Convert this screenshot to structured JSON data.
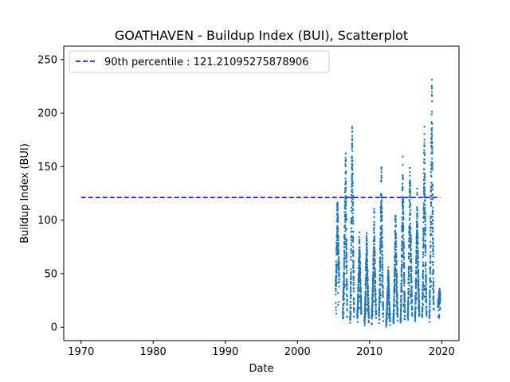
{
  "chart_data": {
    "type": "scatter",
    "title": "GOATHAVEN - Buildup Index (BUI), Scatterplot",
    "xlabel": "Date",
    "ylabel": "Buildup Index (BUI)",
    "xlim": [
      1967.6,
      2022.4
    ],
    "ylim": [
      -12.5,
      262.5
    ],
    "x_ticks": [
      1970,
      1980,
      1990,
      2000,
      2010,
      2020
    ],
    "y_ticks": [
      0,
      50,
      100,
      150,
      200,
      250
    ],
    "grid": false,
    "legend_placement": "upper-left",
    "colors": {
      "points": "#1f77b4",
      "percentile_line": "#0000cc"
    },
    "reference_line": {
      "label": "90th percentile : 121.21095275878906",
      "y": 121.21095275878906,
      "x_start": 1970,
      "x_end": 2019.8,
      "style": "dashed"
    },
    "season_peaks": [
      {
        "start": 2005.3,
        "peak_x": 2005.55,
        "peak_y": 128,
        "end": 2005.8,
        "start_y": 40,
        "end_y": 55
      },
      {
        "start": 2006.3,
        "peak_x": 2006.7,
        "peak_y": 180,
        "end": 2006.9,
        "start_y": 15,
        "end_y": 20
      },
      {
        "start": 2007.3,
        "peak_x": 2007.6,
        "peak_y": 212,
        "end": 2007.85,
        "start_y": 5,
        "end_y": 10
      },
      {
        "start": 2008.3,
        "peak_x": 2008.6,
        "peak_y": 95,
        "end": 2008.85,
        "start_y": 10,
        "end_y": 15
      },
      {
        "start": 2009.3,
        "peak_x": 2009.6,
        "peak_y": 93,
        "end": 2009.9,
        "start_y": 5,
        "end_y": 8
      },
      {
        "start": 2010.3,
        "peak_x": 2010.65,
        "peak_y": 112,
        "end": 2010.9,
        "start_y": 8,
        "end_y": 10
      },
      {
        "start": 2011.3,
        "peak_x": 2011.65,
        "peak_y": 161,
        "end": 2011.9,
        "start_y": 10,
        "end_y": 12
      },
      {
        "start": 2012.3,
        "peak_x": 2012.6,
        "peak_y": 60,
        "end": 2012.85,
        "start_y": 2,
        "end_y": 5
      },
      {
        "start": 2013.3,
        "peak_x": 2013.6,
        "peak_y": 118,
        "end": 2013.9,
        "start_y": 5,
        "end_y": 8
      },
      {
        "start": 2014.3,
        "peak_x": 2014.6,
        "peak_y": 163,
        "end": 2014.9,
        "start_y": 5,
        "end_y": 10
      },
      {
        "start": 2015.3,
        "peak_x": 2015.6,
        "peak_y": 160,
        "end": 2015.9,
        "start_y": 10,
        "end_y": 12
      },
      {
        "start": 2016.3,
        "peak_x": 2016.6,
        "peak_y": 130,
        "end": 2016.9,
        "start_y": 8,
        "end_y": 10
      },
      {
        "start": 2017.3,
        "peak_x": 2017.6,
        "peak_y": 194,
        "end": 2017.9,
        "start_y": 10,
        "end_y": 12
      },
      {
        "start": 2018.3,
        "peak_x": 2018.65,
        "peak_y": 250,
        "end": 2018.9,
        "start_y": 10,
        "end_y": 15
      },
      {
        "start": 2019.5,
        "peak_x": 2019.7,
        "peak_y": 35,
        "end": 2019.8,
        "start_y": 22,
        "end_y": 30
      }
    ]
  }
}
